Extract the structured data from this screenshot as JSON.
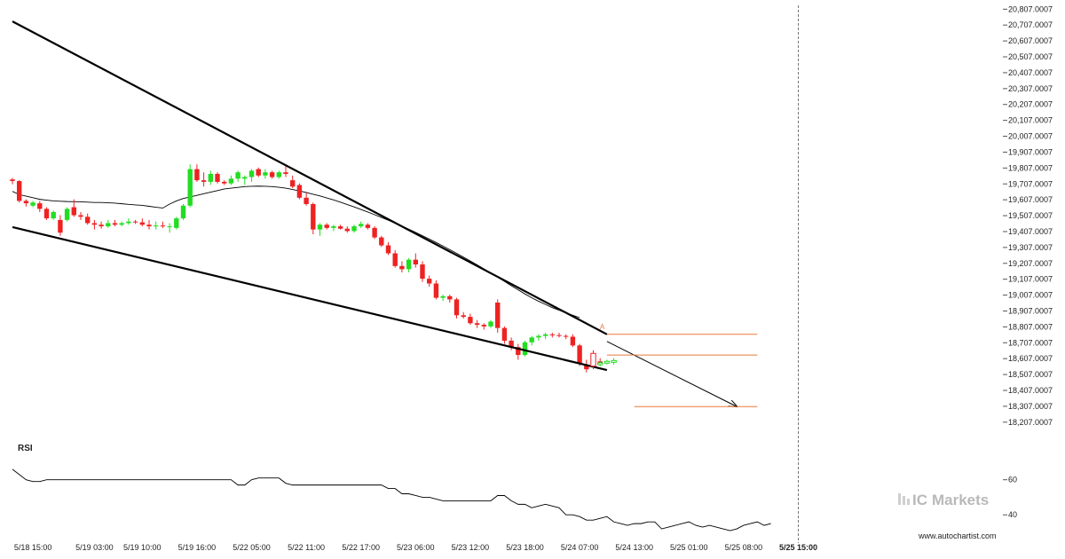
{
  "colors": {
    "up": "#22dd22",
    "down": "#ee2222",
    "trendline": "#000000",
    "ma": "#000000",
    "target": "#e8793b",
    "rsi": "#000000",
    "axis": "#cccccc"
  },
  "branding": {
    "logo_prefix": "IC",
    "logo_suffix": "Markets",
    "website": "www.autochartist.com"
  },
  "chart_data": [
    {
      "type": "candlestick",
      "pattern_marker": "A",
      "y_ticks": [
        "20,807.0007",
        "20,707.0007",
        "20,607.0007",
        "20,507.0007",
        "20,407.0007",
        "20,307.0007",
        "20,207.0007",
        "20,107.0007",
        "20,007.0007",
        "19,907.0007",
        "19,807.0007",
        "19,707.0007",
        "19,607.0007",
        "19,507.0007",
        "19,407.0007",
        "19,307.0007",
        "19,207.0007",
        "19,107.0007",
        "19,007.0007",
        "18,907.0007",
        "18,807.0007",
        "18,707.0007",
        "18,607.0007",
        "18,507.0007",
        "18,407.0007",
        "18,307.0007",
        "18,207.0007"
      ],
      "ylim": [
        18150,
        20820
      ],
      "x_ticks": [
        {
          "label": "5/18 15:00",
          "index": 3
        },
        {
          "label": "5/19 03:00",
          "index": 12
        },
        {
          "label": "5/19 10:00",
          "index": 19
        },
        {
          "label": "5/19 16:00",
          "index": 27
        },
        {
          "label": "5/22 05:00",
          "index": 35
        },
        {
          "label": "5/22 11:00",
          "index": 43
        },
        {
          "label": "5/22 17:00",
          "index": 51
        },
        {
          "label": "5/23 06:00",
          "index": 59
        },
        {
          "label": "5/23 12:00",
          "index": 67
        },
        {
          "label": "5/23 18:00",
          "index": 75
        },
        {
          "label": "5/24 07:00",
          "index": 83
        },
        {
          "label": "5/24 13:00",
          "index": 91
        },
        {
          "label": "5/25 01:00",
          "index": 99
        },
        {
          "label": "5/25 08:00",
          "index": 107
        },
        {
          "label": "5/25 15:00",
          "index": 115,
          "bold": true
        }
      ],
      "candles": [
        [
          19735,
          19745,
          19705,
          19725
        ],
        [
          19725,
          19730,
          19590,
          19600
        ],
        [
          19600,
          19610,
          19565,
          19585
        ],
        [
          19570,
          19600,
          19560,
          19590
        ],
        [
          19585,
          19600,
          19530,
          19550
        ],
        [
          19550,
          19560,
          19480,
          19490
        ],
        [
          19490,
          19540,
          19480,
          19530
        ],
        [
          19480,
          19510,
          19380,
          19400
        ],
        [
          19480,
          19560,
          19470,
          19550
        ],
        [
          19560,
          19610,
          19500,
          19510
        ],
        [
          19510,
          19530,
          19480,
          19500
        ],
        [
          19500,
          19520,
          19450,
          19460
        ],
        [
          19460,
          19480,
          19420,
          19450
        ],
        [
          19450,
          19470,
          19425,
          19440
        ],
        [
          19440,
          19480,
          19430,
          19460
        ],
        [
          19460,
          19480,
          19440,
          19450
        ],
        [
          19450,
          19470,
          19440,
          19460
        ],
        [
          19460,
          19490,
          19450,
          19470
        ],
        [
          19470,
          19480,
          19455,
          19465
        ],
        [
          19465,
          19490,
          19440,
          19450
        ],
        [
          19450,
          19480,
          19420,
          19440
        ],
        [
          19440,
          19470,
          19420,
          19445
        ],
        [
          19445,
          19470,
          19430,
          19440
        ],
        [
          19440,
          19460,
          19400,
          19440
        ],
        [
          19430,
          19500,
          19420,
          19490
        ],
        [
          19490,
          19580,
          19480,
          19570
        ],
        [
          19570,
          19830,
          19560,
          19800
        ],
        [
          19800,
          19830,
          19720,
          19730
        ],
        [
          19730,
          19780,
          19690,
          19720
        ],
        [
          19720,
          19790,
          19700,
          19770
        ],
        [
          19770,
          19780,
          19710,
          19720
        ],
        [
          19720,
          19730,
          19700,
          19710
        ],
        [
          19710,
          19760,
          19700,
          19740
        ],
        [
          19740,
          19790,
          19720,
          19780
        ],
        [
          19740,
          19760,
          19700,
          19750
        ],
        [
          19750,
          19800,
          19720,
          19790
        ],
        [
          19800,
          19810,
          19750,
          19760
        ],
        [
          19760,
          19800,
          19740,
          19780
        ],
        [
          19780,
          19790,
          19740,
          19750
        ],
        [
          19750,
          19790,
          19740,
          19780
        ],
        [
          19780,
          19820,
          19750,
          19770
        ],
        [
          19730,
          19760,
          19680,
          19690
        ],
        [
          19700,
          19710,
          19610,
          19620
        ],
        [
          19620,
          19650,
          19570,
          19580
        ],
        [
          19580,
          19590,
          19390,
          19420
        ],
        [
          19420,
          19460,
          19380,
          19450
        ],
        [
          19450,
          19460,
          19420,
          19430
        ],
        [
          19430,
          19450,
          19410,
          19440
        ],
        [
          19440,
          19450,
          19420,
          19425
        ],
        [
          19425,
          19440,
          19400,
          19410
        ],
        [
          19410,
          19450,
          19400,
          19440
        ],
        [
          19440,
          19470,
          19430,
          19455
        ],
        [
          19450,
          19460,
          19420,
          19430
        ],
        [
          19430,
          19440,
          19360,
          19370
        ],
        [
          19370,
          19380,
          19310,
          19320
        ],
        [
          19320,
          19340,
          19260,
          19270
        ],
        [
          19270,
          19290,
          19180,
          19190
        ],
        [
          19190,
          19220,
          19150,
          19170
        ],
        [
          19170,
          19240,
          19150,
          19230
        ],
        [
          19230,
          19270,
          19180,
          19200
        ],
        [
          19200,
          19220,
          19090,
          19110
        ],
        [
          19110,
          19130,
          19060,
          19080
        ],
        [
          19080,
          19100,
          18980,
          18990
        ],
        [
          18990,
          19010,
          18970,
          19000
        ],
        [
          19000,
          19010,
          18960,
          18980
        ],
        [
          18980,
          18990,
          18860,
          18880
        ],
        [
          18880,
          18900,
          18860,
          18870
        ],
        [
          18870,
          18890,
          18820,
          18830
        ],
        [
          18830,
          18850,
          18800,
          18820
        ],
        [
          18820,
          18830,
          18790,
          18810
        ],
        [
          18810,
          18850,
          18800,
          18840
        ],
        [
          18960,
          18980,
          18770,
          18800
        ],
        [
          18800,
          18810,
          18700,
          18720
        ],
        [
          18720,
          18740,
          18660,
          18680
        ],
        [
          18680,
          18700,
          18600,
          18630
        ],
        [
          18630,
          18720,
          18620,
          18710
        ],
        [
          18710,
          18750,
          18690,
          18740
        ],
        [
          18740,
          18760,
          18720,
          18750
        ],
        [
          18750,
          18770,
          18730,
          18760
        ],
        [
          18760,
          18770,
          18740,
          18755
        ],
        [
          18755,
          18770,
          18740,
          18750
        ],
        [
          18750,
          18760,
          18730,
          18745
        ],
        [
          18745,
          18760,
          18680,
          18690
        ],
        [
          18690,
          18700,
          18560,
          18580
        ],
        [
          18570,
          18600,
          18520,
          18540
        ],
        [
          18560,
          18600,
          18550,
          18590
        ],
        [
          18590,
          18610,
          18560,
          18570
        ]
      ],
      "moving_average": [
        19660,
        19640,
        19630,
        19620,
        19610,
        19605,
        19600,
        19598,
        19596,
        19595,
        19594,
        19592,
        19590,
        19590,
        19588,
        19586,
        19582,
        19578,
        19575,
        19572,
        19566,
        19560,
        19555,
        19580,
        19600,
        19615,
        19625,
        19635,
        19645,
        19655,
        19665,
        19675,
        19680,
        19685,
        19690,
        19692,
        19693,
        19692,
        19690,
        19686,
        19680,
        19672,
        19663,
        19653,
        19642,
        19631,
        19619,
        19606,
        19592,
        19577,
        19562,
        19546,
        19530,
        19513,
        19496,
        19478,
        19460,
        19441,
        19422,
        19402,
        19381,
        19360,
        19338,
        19316,
        19293,
        19270,
        19246,
        19222,
        19197,
        19172,
        19146,
        19120,
        19093,
        19066,
        19040,
        19014,
        18990,
        18968,
        18948,
        18928,
        18912,
        18895,
        18880,
        18865
      ],
      "trendlines": [
        {
          "from": [
            0,
            20730
          ],
          "to": [
            87,
            18760
          ]
        },
        {
          "from": [
            0,
            19435
          ],
          "to": [
            87,
            18535
          ]
        },
        {
          "from": [
            87,
            18715
          ],
          "to": [
            106,
            18305
          ],
          "arrow": true
        }
      ],
      "levels": [
        {
          "value": 18760,
          "from": 87,
          "to": 109
        },
        {
          "value": 18630,
          "from": 87,
          "to": 109
        },
        {
          "value": 18305,
          "from": 91,
          "to": 109
        }
      ],
      "projection_candles": [
        [
          18640,
          18660,
          18540,
          18560
        ],
        [
          18570,
          18590,
          18560,
          18580
        ],
        [
          18580,
          18600,
          18570,
          18590
        ],
        [
          18590,
          18610,
          18570,
          18595
        ]
      ]
    },
    {
      "type": "line",
      "title": "RSI",
      "y_ticks": [
        "60",
        "40"
      ],
      "ylim": [
        30,
        73
      ],
      "values": [
        66,
        63,
        60,
        59,
        59,
        60,
        60,
        60,
        60,
        60,
        60,
        60,
        60,
        60,
        60,
        60,
        60,
        60,
        60,
        60,
        60,
        60,
        60,
        60,
        60,
        60,
        60,
        60,
        60,
        60,
        60,
        60,
        60,
        57,
        57,
        60,
        61,
        61,
        61,
        61,
        58,
        57,
        57,
        57,
        57,
        57,
        57,
        57,
        57,
        57,
        57,
        57,
        57,
        57,
        57,
        55,
        55,
        52,
        52,
        51,
        50,
        50,
        49,
        48,
        48,
        48,
        48,
        48,
        48,
        48,
        48,
        51,
        51,
        48,
        46,
        46,
        44,
        45,
        46,
        45,
        44,
        40,
        40,
        39,
        37,
        37,
        38,
        39,
        36,
        35,
        34,
        35,
        35,
        36,
        36,
        32,
        33,
        34,
        35,
        36,
        34,
        33,
        34,
        33,
        32,
        31,
        32,
        34,
        35,
        36,
        34,
        35
      ]
    }
  ]
}
